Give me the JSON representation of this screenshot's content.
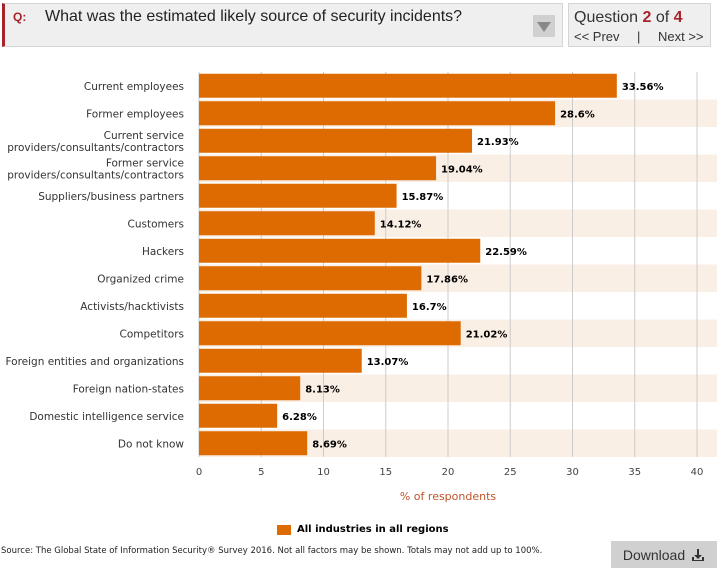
{
  "question": {
    "label": "Q:",
    "text": "What was the estimated likely source of security incidents?"
  },
  "nav": {
    "prefix": "Question",
    "current": "2",
    "of": "of",
    "total": "4",
    "prev": "<< Prev",
    "sep": "|",
    "next": "Next >>"
  },
  "chart_data": {
    "type": "bar",
    "orientation": "horizontal",
    "categories": [
      "Current employees",
      "Former employees",
      "Current service\nproviders/consultants/contractors",
      "Former service\nproviders/consultants/contractors",
      "Suppliers/business partners",
      "Customers",
      "Hackers",
      "Organized crime",
      "Activists/hacktivists",
      "Competitors",
      "Foreign entities and organizations",
      "Foreign nation-states",
      "Domestic intelligence service",
      "Do not know"
    ],
    "series": [
      {
        "name": "All industries in all regions",
        "values": [
          33.56,
          28.6,
          21.93,
          19.04,
          15.87,
          14.12,
          22.59,
          17.86,
          16.7,
          21.02,
          13.07,
          8.13,
          6.28,
          8.69
        ],
        "labels": [
          "33.56%",
          "28.6%",
          "21.93%",
          "19.04%",
          "15.87%",
          "14.12%",
          "22.59%",
          "17.86%",
          "16.7%",
          "21.02%",
          "13.07%",
          "8.13%",
          "6.28%",
          "8.69%"
        ]
      }
    ],
    "xlabel": "% of respondents",
    "xlim": [
      0,
      40
    ],
    "xticks": [
      "0",
      "5",
      "10",
      "15",
      "20",
      "25",
      "30",
      "35",
      "40"
    ],
    "grid": true,
    "legend": "bottom",
    "bar_color": "#dd6b02",
    "stripe_color": "#faefe4"
  },
  "legend_label": "All industries in all regions",
  "source": "Source: The Global State of Information Security® Survey 2016. Not all factors may be shown. Totals may not add up to 100%.",
  "download": {
    "label": "Download",
    "icon": "download-icon"
  }
}
